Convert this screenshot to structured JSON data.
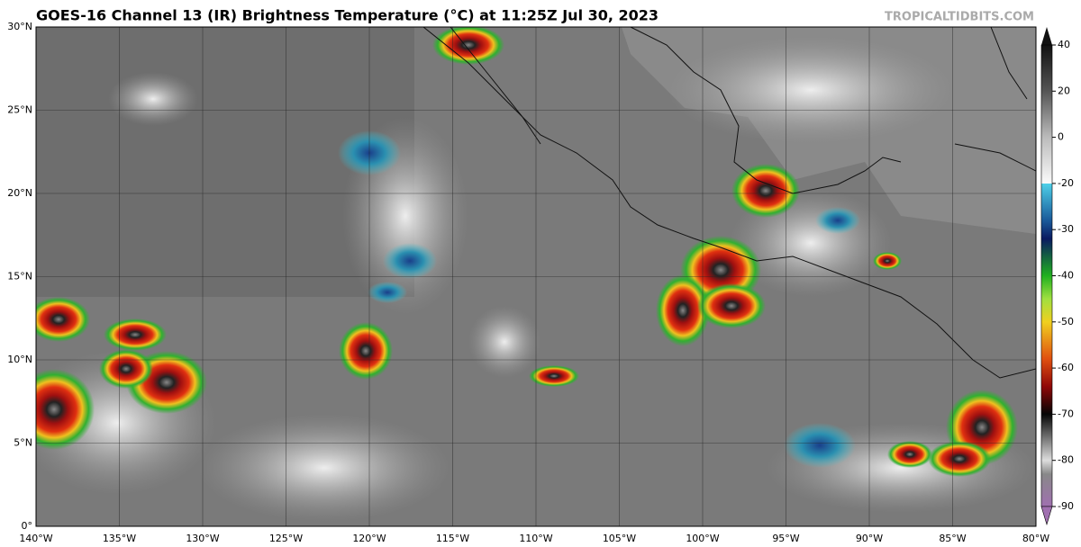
{
  "header": {
    "title": "GOES-16 Channel 13 (IR) Brightness Temperature (°C) at 11:25Z Jul 30, 2023",
    "watermark": "TROPICALTIDBITS.COM"
  },
  "map": {
    "lat_labels": [
      "30°N",
      "25°N",
      "20°N",
      "15°N",
      "10°N",
      "5°N",
      "0°"
    ],
    "lon_labels": [
      "140°W",
      "135°W",
      "130°W",
      "125°W",
      "120°W",
      "115°W",
      "110°W",
      "105°W",
      "100°W",
      "95°W",
      "90°W",
      "85°W",
      "80°W"
    ]
  },
  "colorbar": {
    "ticks": [
      40,
      20,
      0,
      -20,
      -30,
      -40,
      -50,
      -60,
      -70,
      -80,
      -90
    ]
  }
}
